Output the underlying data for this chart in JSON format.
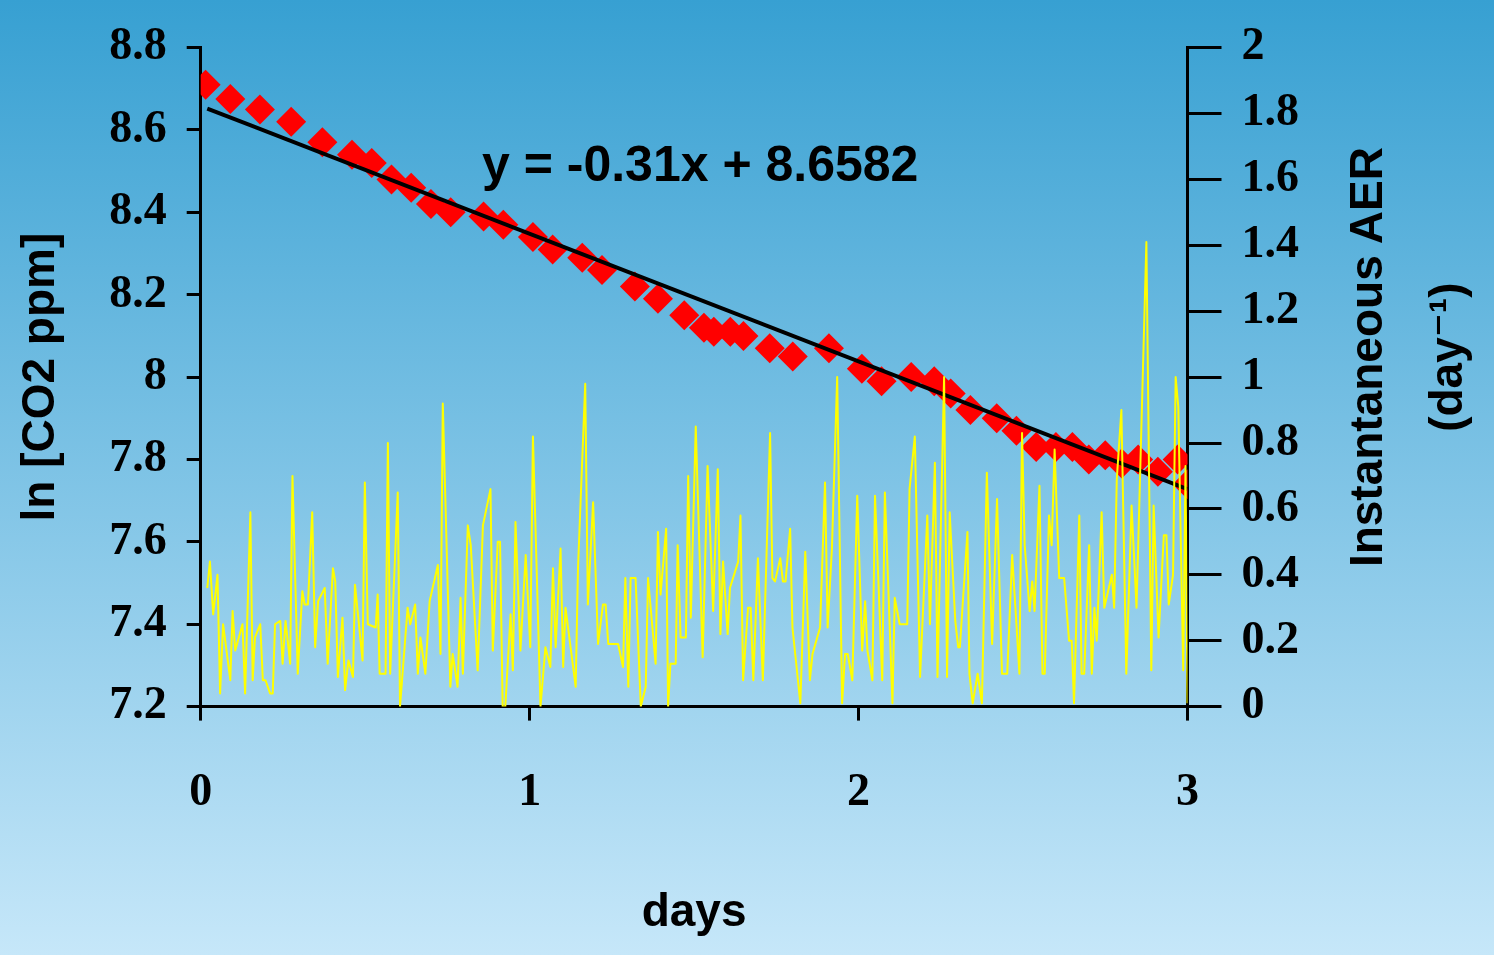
{
  "chart_data": {
    "type": "scatter",
    "xlabel": "days",
    "ylabel": "ln [CO2 ppm]",
    "y2label": "Instantaneous AER\n(day⁻¹)",
    "annotations": [
      "y = -0.31x + 8.6582"
    ],
    "xlim": [
      0,
      3
    ],
    "xticks": [
      0,
      1,
      2,
      3
    ],
    "ylim": [
      7.2,
      8.8
    ],
    "yticks": [
      7.2,
      7.4,
      7.6,
      7.8,
      8,
      8.2,
      8.4,
      8.6,
      8.8
    ],
    "y2lim": [
      0,
      2
    ],
    "y2ticks": [
      0,
      0.2,
      0.4,
      0.6,
      0.8,
      1,
      1.2,
      1.4,
      1.6,
      1.8,
      2
    ],
    "grid": false,
    "legend": false,
    "series": [
      {
        "marker": "diamond",
        "color": "#ff0000",
        "x": [
          0.015,
          0.09,
          0.18,
          0.275,
          0.37,
          0.46,
          0.52,
          0.58,
          0.64,
          0.7,
          0.76,
          0.86,
          0.92,
          1.01,
          1.07,
          1.16,
          1.22,
          1.32,
          1.39,
          1.47,
          1.53,
          1.56,
          1.61,
          1.65,
          1.73,
          1.8,
          1.91,
          2.01,
          2.07,
          2.16,
          2.23,
          2.28,
          2.34,
          2.42,
          2.48,
          2.54,
          2.6,
          2.65,
          2.7,
          2.75,
          2.8,
          2.85,
          2.91,
          2.97,
          3.0
        ],
        "values": [
          8.71,
          8.675,
          8.65,
          8.62,
          8.57,
          8.54,
          8.52,
          8.48,
          8.46,
          8.42,
          8.4,
          8.39,
          8.37,
          8.34,
          8.31,
          8.29,
          8.26,
          8.22,
          8.19,
          8.15,
          8.12,
          8.11,
          8.11,
          8.1,
          8.07,
          8.05,
          8.07,
          8.02,
          7.99,
          8.0,
          7.99,
          7.96,
          7.92,
          7.9,
          7.87,
          7.83,
          7.83,
          7.83,
          7.8,
          7.81,
          7.79,
          7.8,
          7.77,
          7.8,
          7.74
        ]
      },
      {
        "type": "line",
        "marker": "none",
        "color": "#000000",
        "x": [
          0.02,
          3.0
        ],
        "values": [
          8.652,
          7.728
        ]
      },
      {
        "type": "line",
        "marker": "none",
        "axis": "y2",
        "color": "#ffff00",
        "x": [
          0.02,
          0.028,
          0.038,
          0.051,
          0.059,
          0.068,
          0.09,
          0.097,
          0.105,
          0.127,
          0.135,
          0.151,
          0.158,
          0.165,
          0.181,
          0.189,
          0.197,
          0.211,
          0.219,
          0.226,
          0.242,
          0.249,
          0.258,
          0.272,
          0.279,
          0.295,
          0.309,
          0.316,
          0.326,
          0.339,
          0.348,
          0.357,
          0.377,
          0.386,
          0.402,
          0.409,
          0.417,
          0.431,
          0.439,
          0.449,
          0.463,
          0.469,
          0.492,
          0.499,
          0.508,
          0.532,
          0.538,
          0.544,
          0.562,
          0.569,
          0.576,
          0.599,
          0.606,
          0.629,
          0.637,
          0.652,
          0.66,
          0.668,
          0.683,
          0.696,
          0.721,
          0.729,
          0.736,
          0.759,
          0.766,
          0.781,
          0.79,
          0.797,
          0.812,
          0.821,
          0.842,
          0.858,
          0.881,
          0.888,
          0.903,
          0.91,
          0.918,
          0.926,
          0.942,
          0.949,
          0.957,
          0.972,
          0.988,
          1.002,
          1.01,
          1.033,
          1.048,
          1.063,
          1.071,
          1.079,
          1.094,
          1.102,
          1.109,
          1.14,
          1.147,
          1.169,
          1.177,
          1.193,
          1.208,
          1.223,
          1.231,
          1.239,
          1.269,
          1.284,
          1.291,
          1.3,
          1.307,
          1.322,
          1.338,
          1.353,
          1.36,
          1.383,
          1.39,
          1.398,
          1.415,
          1.421,
          1.428,
          1.444,
          1.45,
          1.459,
          1.475,
          1.482,
          1.49,
          1.505,
          1.526,
          1.541,
          1.558,
          1.572,
          1.58,
          1.588,
          1.602,
          1.609,
          1.634,
          1.641,
          1.649,
          1.664,
          1.672,
          1.68,
          1.694,
          1.709,
          1.731,
          1.738,
          1.746,
          1.762,
          1.77,
          1.778,
          1.792,
          1.799,
          1.823,
          1.838,
          1.852,
          1.86,
          1.883,
          1.898,
          1.906,
          1.919,
          1.935,
          1.95,
          1.959,
          1.967,
          1.981,
          1.996,
          2.011,
          2.02,
          2.027,
          2.042,
          2.05,
          2.072,
          2.08,
          2.103,
          2.11,
          2.125,
          2.148,
          2.155,
          2.171,
          2.187,
          2.209,
          2.217,
          2.232,
          2.24,
          2.26,
          2.269,
          2.277,
          2.294,
          2.303,
          2.308,
          2.331,
          2.337,
          2.347,
          2.362,
          2.375,
          2.39,
          2.406,
          2.421,
          2.436,
          2.452,
          2.467,
          2.489,
          2.497,
          2.505,
          2.52,
          2.528,
          2.535,
          2.55,
          2.559,
          2.566,
          2.579,
          2.587,
          2.596,
          2.61,
          2.625,
          2.64,
          2.648,
          2.655,
          2.671,
          2.678,
          2.686,
          2.701,
          2.709,
          2.717,
          2.724,
          2.739,
          2.747,
          2.77,
          2.777,
          2.785,
          2.799,
          2.814,
          2.83,
          2.845,
          2.875,
          2.89,
          2.897,
          2.912,
          2.928,
          2.936,
          2.943,
          2.956,
          2.964,
          2.972,
          2.987,
          2.994,
          3.0
        ],
        "values": [
          0.36,
          0.44,
          0.28,
          0.4,
          0.04,
          0.25,
          0.08,
          0.29,
          0.17,
          0.25,
          0.04,
          0.59,
          0.08,
          0.21,
          0.25,
          0.08,
          0.08,
          0.04,
          0.04,
          0.25,
          0.26,
          0.13,
          0.26,
          0.13,
          0.7,
          0.1,
          0.35,
          0.31,
          0.31,
          0.59,
          0.18,
          0.32,
          0.36,
          0.13,
          0.42,
          0.38,
          0.09,
          0.27,
          0.05,
          0.14,
          0.09,
          0.37,
          0.14,
          0.68,
          0.25,
          0.24,
          0.34,
          0.1,
          0.1,
          0.8,
          0.1,
          0.65,
          0.0,
          0.3,
          0.25,
          0.31,
          0.1,
          0.21,
          0.1,
          0.32,
          0.43,
          0.16,
          0.92,
          0.06,
          0.16,
          0.06,
          0.33,
          0.1,
          0.55,
          0.49,
          0.11,
          0.55,
          0.66,
          0.17,
          0.5,
          0.5,
          0.0,
          0.0,
          0.28,
          0.11,
          0.56,
          0.17,
          0.46,
          0.18,
          0.82,
          0.0,
          0.18,
          0.12,
          0.42,
          0.18,
          0.48,
          0.12,
          0.3,
          0.06,
          0.42,
          0.98,
          0.31,
          0.62,
          0.19,
          0.31,
          0.31,
          0.19,
          0.19,
          0.12,
          0.39,
          0.06,
          0.39,
          0.39,
          0.0,
          0.06,
          0.39,
          0.13,
          0.53,
          0.34,
          0.54,
          0.0,
          0.13,
          0.13,
          0.49,
          0.21,
          0.21,
          0.7,
          0.27,
          0.85,
          0.15,
          0.73,
          0.29,
          0.72,
          0.22,
          0.44,
          0.22,
          0.36,
          0.44,
          0.58,
          0.08,
          0.3,
          0.3,
          0.08,
          0.45,
          0.08,
          0.83,
          0.39,
          0.38,
          0.45,
          0.38,
          0.38,
          0.54,
          0.24,
          0.01,
          0.47,
          0.08,
          0.16,
          0.24,
          0.68,
          0.24,
          0.48,
          1.0,
          0.01,
          0.16,
          0.16,
          0.08,
          0.64,
          0.17,
          0.32,
          0.17,
          0.08,
          0.64,
          0.08,
          0.65,
          0.01,
          0.33,
          0.25,
          0.25,
          0.66,
          0.82,
          0.09,
          0.58,
          0.25,
          0.74,
          0.09,
          1.0,
          0.09,
          0.59,
          0.26,
          0.18,
          0.18,
          0.53,
          0.1,
          0.01,
          0.1,
          0.01,
          0.71,
          0.19,
          0.63,
          0.1,
          0.1,
          0.46,
          0.1,
          0.83,
          0.49,
          0.29,
          0.38,
          0.29,
          0.67,
          0.1,
          0.1,
          0.58,
          0.49,
          0.78,
          0.39,
          0.39,
          0.2,
          0.2,
          0.01,
          0.58,
          0.1,
          0.1,
          0.49,
          0.1,
          0.3,
          0.2,
          0.59,
          0.3,
          0.4,
          0.3,
          0.69,
          0.9,
          0.1,
          0.61,
          0.3,
          1.41,
          0.11,
          0.61,
          0.21,
          0.52,
          0.52,
          0.31,
          0.4,
          1.0,
          0.91,
          0.11,
          0.73,
          0.01
        ]
      }
    ]
  }
}
